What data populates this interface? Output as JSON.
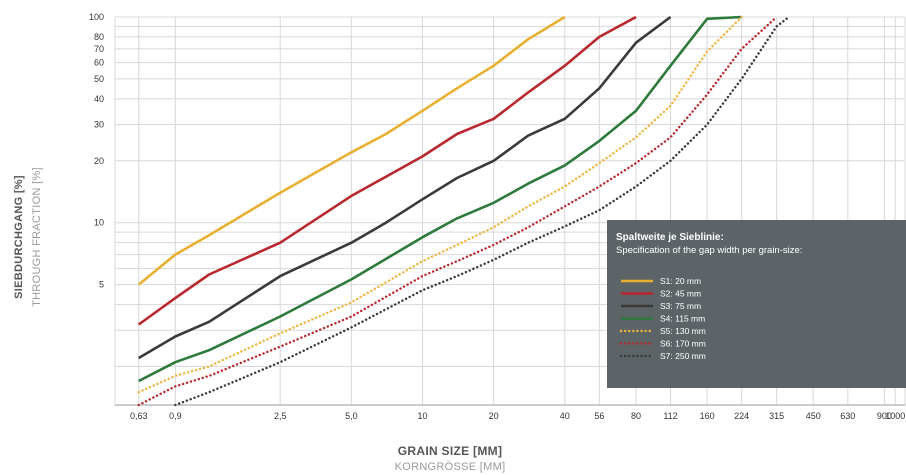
{
  "chart_data": {
    "type": "line",
    "title": "",
    "xlabel": "GRAIN SIZE [MM]",
    "xlabel_secondary": "KORNGRÖSSE [MM]",
    "ylabel": "SIEBDURCHGANG [%]",
    "ylabel_secondary": "THROUGH FRACTION [%]",
    "x_scale": "log",
    "y_scale": "log",
    "xlim": [
      0.5,
      1100
    ],
    "ylim": [
      1.3,
      100
    ],
    "grid": true,
    "x_ticks": [
      0.63,
      0.9,
      2.5,
      5.0,
      10,
      20,
      40,
      56,
      80,
      112,
      160,
      224,
      315,
      450,
      630,
      900,
      1000
    ],
    "x_tick_labels": [
      "0,63",
      "0,9",
      "2,5",
      "5,0",
      "10",
      "20",
      "40",
      "56",
      "80",
      "112",
      "160",
      "224",
      "315",
      "450",
      "630",
      "900",
      "1000"
    ],
    "y_ticks": [
      5,
      10,
      20,
      30,
      40,
      50,
      60,
      70,
      80,
      100
    ],
    "y_tick_labels": [
      "5",
      "10",
      "20",
      "30",
      "40",
      "50",
      "60",
      "70",
      "80",
      "100"
    ],
    "legend": {
      "title": "Spaltweite je Sieblinie:",
      "subtitle": "Specification of the gap width per grain-size:",
      "placement": "bottom-right"
    },
    "series": [
      {
        "name": "S1:   20 mm",
        "color": "#e8b030",
        "style": "solid",
        "x": [
          0.63,
          0.9,
          1.25,
          2.5,
          5.0,
          7.0,
          10,
          14,
          20,
          28,
          40
        ],
        "y": [
          5.0,
          7.0,
          8.7,
          14,
          22,
          27,
          35,
          45,
          58,
          78,
          100
        ]
      },
      {
        "name": "S2:   45 mm",
        "color": "#b8282e",
        "style": "solid",
        "x": [
          0.63,
          0.9,
          1.25,
          2.5,
          5.0,
          10,
          14,
          20,
          28,
          40,
          56,
          80
        ],
        "y": [
          3.2,
          4.3,
          5.6,
          8.0,
          13.5,
          21,
          27,
          32,
          43,
          58,
          80,
          100
        ]
      },
      {
        "name": "S3:   75 mm",
        "color": "#3a3a3a",
        "style": "solid",
        "x": [
          0.63,
          0.9,
          1.25,
          2.5,
          5.0,
          7.0,
          10,
          14,
          20,
          28,
          40,
          56,
          80,
          112
        ],
        "y": [
          2.2,
          2.8,
          3.3,
          5.5,
          8.0,
          10,
          13,
          16.5,
          20,
          26.5,
          32,
          45,
          75,
          100
        ]
      },
      {
        "name": "S4: 115 mm",
        "color": "#2e7a3c",
        "style": "solid",
        "x": [
          0.63,
          0.9,
          1.25,
          2.5,
          5.0,
          10,
          14,
          20,
          28,
          40,
          56,
          80,
          112,
          160,
          224
        ],
        "y": [
          1.7,
          2.1,
          2.4,
          3.5,
          5.3,
          8.5,
          10.5,
          12.5,
          15.5,
          19,
          25,
          35,
          58,
          98,
          100
        ]
      },
      {
        "name": "S5: 130 mm",
        "color": "#f0b43c",
        "style": "dotted",
        "x": [
          0.63,
          0.9,
          1.25,
          2.5,
          5.0,
          10,
          14,
          20,
          28,
          40,
          56,
          80,
          112,
          160,
          224
        ],
        "y": [
          1.5,
          1.8,
          2.0,
          2.9,
          4.1,
          6.5,
          7.8,
          9.5,
          12,
          15,
          19.5,
          26,
          37,
          68,
          100
        ]
      },
      {
        "name": "S6: 170 mm",
        "color": "#b8282e",
        "style": "dotted",
        "x": [
          0.63,
          0.9,
          1.25,
          2.5,
          5.0,
          10,
          14,
          20,
          28,
          40,
          56,
          80,
          112,
          160,
          224,
          315
        ],
        "y": [
          1.3,
          1.6,
          1.8,
          2.5,
          3.5,
          5.5,
          6.5,
          7.8,
          9.5,
          12,
          15,
          19.5,
          26,
          42,
          70,
          100
        ]
      },
      {
        "name": "S7: 250 mm",
        "color": "#3a3a3a",
        "style": "dotted",
        "x": [
          0.9,
          1.25,
          2.5,
          5.0,
          10,
          14,
          20,
          28,
          40,
          56,
          80,
          112,
          160,
          224,
          315,
          355
        ],
        "y": [
          1.3,
          1.5,
          2.1,
          3.1,
          4.7,
          5.5,
          6.6,
          8.0,
          9.6,
          11.5,
          15,
          20,
          30,
          50,
          90,
          100
        ]
      }
    ]
  },
  "colors": {
    "grid": "#d8d8d8",
    "axis": "#999999",
    "legend_bg": "#5d6468"
  }
}
